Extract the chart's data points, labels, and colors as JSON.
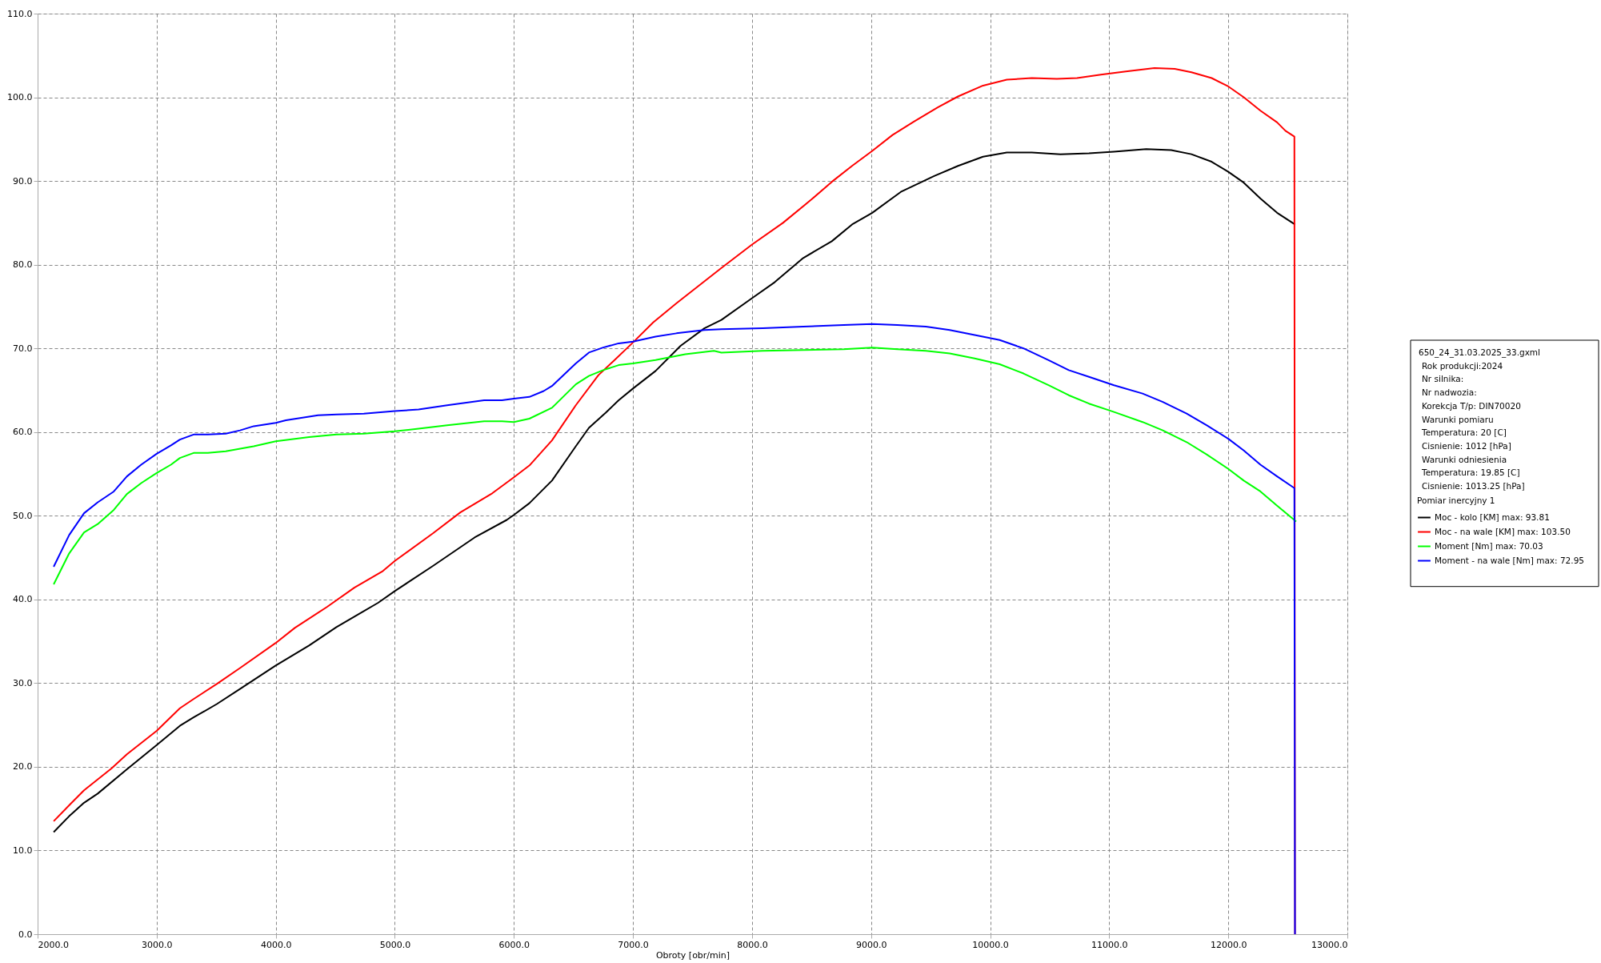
{
  "chart_data": {
    "type": "line",
    "xlabel": "Obroty [obr/min]",
    "legend_title": "Pomiar inercyjny 1",
    "legend": "right",
    "grid": true,
    "line_style": "solid",
    "xlim": [
      2000,
      13000
    ],
    "ylim": [
      0,
      110
    ],
    "xticks": [
      {
        "value": 2000,
        "label": "2000.0"
      },
      {
        "value": 3000,
        "label": "3000.0"
      },
      {
        "value": 4000,
        "label": "4000.0"
      },
      {
        "value": 5000,
        "label": "5000.0"
      },
      {
        "value": 6000,
        "label": "6000.0"
      },
      {
        "value": 7000,
        "label": "7000.0"
      },
      {
        "value": 8000,
        "label": "8000.0"
      },
      {
        "value": 9000,
        "label": "9000.0"
      },
      {
        "value": 10000,
        "label": "10000.0"
      },
      {
        "value": 11000,
        "label": "11000.0"
      },
      {
        "value": 12000,
        "label": "12000.0"
      },
      {
        "value": 13000,
        "label": "13000.0"
      }
    ],
    "yticks": [
      {
        "value": 0,
        "label": "0.0"
      },
      {
        "value": 10,
        "label": "10.0"
      },
      {
        "value": 20,
        "label": "20.0"
      },
      {
        "value": 30,
        "label": "30.0"
      },
      {
        "value": 40,
        "label": "40.0"
      },
      {
        "value": 50,
        "label": "50.0"
      },
      {
        "value": 60,
        "label": "60.0"
      },
      {
        "value": 70,
        "label": "70.0"
      },
      {
        "value": 80,
        "label": "80.0"
      },
      {
        "value": 90,
        "label": "90.0"
      },
      {
        "value": 100,
        "label": "100.0"
      },
      {
        "value": 110,
        "label": "110.0"
      }
    ],
    "annotations": [
      "650_24_31.03.2025_33.gxml",
      "Rok produkcji:2024",
      "Nr silnika:",
      "Nr nadwozia:",
      "Korekcja T/p: DIN70020",
      "Warunki pomiaru",
      "Temperatura: 20 [C]",
      "Cisnienie: 1012 [hPa]",
      "Warunki odniesienia",
      "Temperatura: 19.85 [C]",
      "Cisnienie: 1013.25 [hPa]"
    ],
    "series": [
      {
        "name": "Moc - kolo [KM] max: 93.81",
        "color": "#000000",
        "x": [
          2135,
          2265,
          2390,
          2505,
          2750,
          3000,
          3195,
          3310,
          3505,
          3700,
          4000,
          4280,
          4510,
          4860,
          5000,
          5320,
          5670,
          5940,
          6000,
          6130,
          6320,
          6520,
          6630,
          6770,
          6880,
          7000,
          7190,
          7400,
          7600,
          7743,
          8000,
          8190,
          8430,
          8670,
          8840,
          9010,
          9250,
          9530,
          9730,
          9940,
          10140,
          10350,
          10590,
          10830,
          11040,
          11310,
          11520,
          11690,
          11860,
          12000,
          12130,
          12270,
          12410,
          12560
        ],
        "values": [
          12.2,
          14.1,
          15.7,
          16.8,
          19.7,
          22.6,
          24.9,
          25.9,
          27.5,
          29.3,
          32.1,
          34.5,
          36.7,
          39.6,
          41.0,
          44.0,
          47.4,
          49.5,
          50.1,
          51.5,
          54.2,
          58.3,
          60.5,
          62.3,
          63.8,
          65.2,
          67.3,
          70.3,
          72.4,
          73.4,
          76.0,
          77.9,
          80.8,
          82.8,
          84.8,
          86.2,
          88.7,
          90.6,
          91.8,
          92.9,
          93.4,
          93.4,
          93.2,
          93.3,
          93.5,
          93.8,
          93.7,
          93.2,
          92.3,
          91.1,
          89.8,
          87.9,
          86.2,
          84.8
        ]
      },
      {
        "name": "Moc - na wale [KM] max: 103.50",
        "color": "#ff0000",
        "x": [
          2135,
          2265,
          2390,
          2620,
          2750,
          3000,
          3195,
          3310,
          3505,
          3700,
          4000,
          4160,
          4430,
          4660,
          4900,
          5000,
          5320,
          5550,
          5820,
          6000,
          6130,
          6320,
          6520,
          6710,
          6830,
          7000,
          7170,
          7366,
          7743,
          8000,
          8260,
          8500,
          8670,
          8840,
          9010,
          9180,
          9360,
          9560,
          9730,
          9940,
          10140,
          10350,
          10560,
          10730,
          10930,
          11140,
          11380,
          11550,
          11690,
          11860,
          12000,
          12130,
          12270,
          12410,
          12480,
          12555,
          12560
        ],
        "values": [
          13.5,
          15.4,
          17.2,
          19.8,
          21.5,
          24.3,
          27.0,
          28.1,
          29.9,
          31.8,
          34.8,
          36.6,
          39.1,
          41.4,
          43.4,
          44.6,
          47.9,
          50.4,
          52.7,
          54.6,
          56.0,
          59.0,
          63.2,
          66.8,
          68.4,
          70.7,
          73.1,
          75.4,
          79.6,
          82.4,
          85.0,
          87.8,
          89.9,
          91.8,
          93.6,
          95.5,
          97.1,
          98.8,
          100.1,
          101.4,
          102.1,
          102.3,
          102.2,
          102.3,
          102.7,
          103.1,
          103.5,
          103.4,
          103.0,
          102.3,
          101.3,
          100.0,
          98.4,
          97.0,
          96.0,
          95.3,
          0
        ]
      },
      {
        "name": "Moment [Nm] max: 70.03",
        "color": "#00ff00",
        "x": [
          2135,
          2265,
          2390,
          2505,
          2640,
          2750,
          2870,
          3000,
          3120,
          3195,
          3310,
          3430,
          3580,
          3815,
          4000,
          4280,
          4510,
          4740,
          5000,
          5200,
          5440,
          5750,
          5900,
          6000,
          6130,
          6320,
          6520,
          6630,
          6750,
          6880,
          7000,
          7190,
          7440,
          7680,
          7743,
          8090,
          8430,
          8770,
          9010,
          9220,
          9460,
          9660,
          9870,
          10080,
          10280,
          10490,
          10660,
          10830,
          11040,
          11280,
          11450,
          11650,
          11820,
          12000,
          12130,
          12270,
          12410,
          12570
        ],
        "values": [
          41.8,
          45.5,
          48.0,
          49.0,
          50.7,
          52.6,
          53.9,
          55.1,
          56.1,
          56.9,
          57.5,
          57.5,
          57.7,
          58.3,
          58.9,
          59.4,
          59.7,
          59.8,
          60.1,
          60.4,
          60.8,
          61.3,
          61.3,
          61.2,
          61.6,
          62.9,
          65.7,
          66.7,
          67.4,
          68.0,
          68.2,
          68.6,
          69.3,
          69.7,
          69.5,
          69.7,
          69.8,
          69.9,
          70.1,
          69.9,
          69.7,
          69.4,
          68.8,
          68.1,
          67.0,
          65.6,
          64.4,
          63.4,
          62.4,
          61.2,
          60.2,
          58.8,
          57.3,
          55.6,
          54.2,
          52.9,
          51.2,
          49.3
        ]
      },
      {
        "name": "Moment - na wale [Nm] max: 72.95",
        "color": "#0000ff",
        "x": [
          2135,
          2265,
          2390,
          2505,
          2640,
          2750,
          2870,
          3000,
          3120,
          3195,
          3310,
          3430,
          3580,
          3700,
          3815,
          4000,
          4085,
          4355,
          4510,
          4740,
          5000,
          5200,
          5440,
          5750,
          5900,
          6000,
          6130,
          6250,
          6320,
          6520,
          6630,
          6750,
          6880,
          7000,
          7190,
          7366,
          7600,
          7743,
          8090,
          8430,
          8770,
          9010,
          9220,
          9460,
          9660,
          9870,
          10080,
          10280,
          10490,
          10660,
          10830,
          11040,
          11280,
          11450,
          11650,
          11820,
          12000,
          12130,
          12270,
          12410,
          12555,
          12560
        ],
        "values": [
          43.9,
          47.7,
          50.3,
          51.6,
          52.9,
          54.7,
          56.1,
          57.4,
          58.4,
          59.1,
          59.7,
          59.7,
          59.8,
          60.2,
          60.7,
          61.1,
          61.4,
          62.0,
          62.1,
          62.2,
          62.5,
          62.7,
          63.2,
          63.8,
          63.8,
          64.0,
          64.2,
          64.9,
          65.5,
          68.2,
          69.5,
          70.1,
          70.6,
          70.8,
          71.4,
          71.8,
          72.2,
          72.3,
          72.4,
          72.6,
          72.8,
          72.9,
          72.8,
          72.6,
          72.2,
          71.6,
          71.0,
          70.0,
          68.6,
          67.4,
          66.6,
          65.6,
          64.6,
          63.6,
          62.2,
          60.8,
          59.2,
          57.8,
          56.1,
          54.7,
          53.3,
          0
        ]
      }
    ]
  }
}
